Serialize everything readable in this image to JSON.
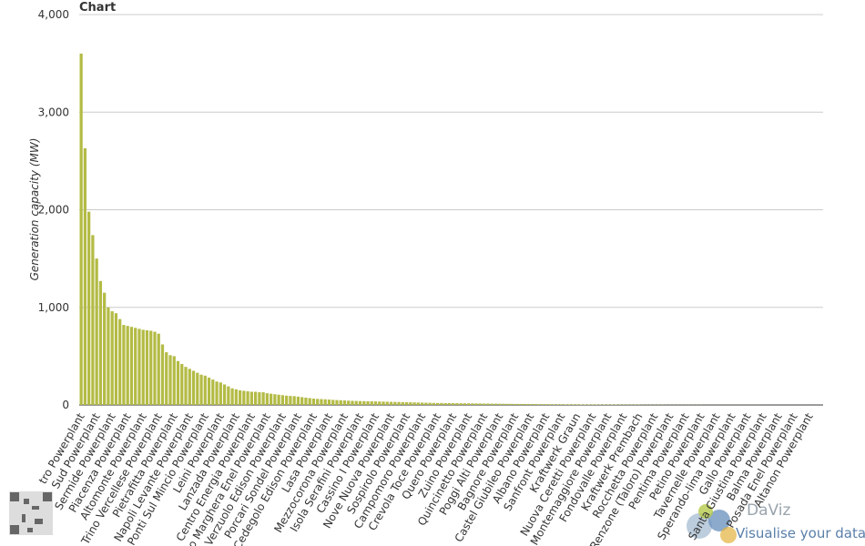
{
  "chart_data": {
    "type": "bar",
    "title": "Chart",
    "y_label": "Generation capacity (MW)",
    "color": "#b3bb45",
    "grid": true,
    "ylim": [
      0,
      4000
    ],
    "yticks": [
      0,
      {
        "value": 1000,
        "label": "1,000"
      },
      {
        "value": 2000,
        "label": "2,000"
      },
      {
        "value": 3000,
        "label": "3,000"
      },
      {
        "value": 4000,
        "label": "4,000"
      }
    ],
    "categories": [
      "tro Powerplant",
      null,
      null,
      null,
      "Sud Powerplant",
      null,
      null,
      null,
      "Sermide Powerplant",
      null,
      null,
      null,
      "Piacenza Powerplant",
      null,
      null,
      null,
      "Altomonte Powerplant",
      null,
      null,
      null,
      "Trino Vercellese Powerplant",
      null,
      null,
      null,
      "Pietrafitta Powerplant",
      null,
      null,
      null,
      "Napoli Levante Powerplant",
      null,
      null,
      null,
      "Ponti Sul Mincio Powerplant",
      null,
      null,
      null,
      "Leini Powerplant",
      null,
      null,
      null,
      "Lanzada Powerplant",
      null,
      null,
      null,
      "Centro Energia Powerplant",
      null,
      null,
      null,
      "o Marghera Enel Powerplant",
      null,
      null,
      null,
      "Verzuolo Edison Powerplant",
      null,
      null,
      null,
      "Porcari Sondel Powerplant",
      null,
      null,
      null,
      "Cedegolo Edison Powerplant",
      null,
      null,
      null,
      "Lasa Powerplant",
      null,
      null,
      null,
      "Mezzocorona Powerplant",
      null,
      null,
      null,
      "Isola Serafini Powerplant",
      null,
      null,
      null,
      "Cassino I Powerplant",
      null,
      null,
      null,
      "Nove Nuova Powerplant",
      null,
      null,
      null,
      "Sospirolo Powerplant",
      null,
      null,
      null,
      "Campomoro Powerplant",
      null,
      null,
      null,
      "Crevola Toce Powerplant",
      null,
      null,
      null,
      "Quero Powerplant",
      null,
      null,
      null,
      "Zuino Powerplant",
      null,
      null,
      null,
      "Quincinetto Powerplant",
      null,
      null,
      null,
      "Poggi Alti Powerplant",
      null,
      null,
      null,
      "Bagnore Powerplant",
      null,
      null,
      null,
      "Castel Giubileo Powerplant",
      null,
      null,
      null,
      "Albano Powerplant",
      null,
      null,
      null,
      "Sanfront Powerplant",
      null,
      null,
      null,
      "Kraftwerk Graun",
      null,
      null,
      null,
      "Nuova Ceretti Powerplant",
      null,
      null,
      null,
      "Montemaggiore Powerplant",
      null,
      null,
      null,
      "Fondovalle Powerplant",
      null,
      null,
      null,
      "Kraftwerk Prembach",
      null,
      null,
      null,
      "Rocchetta Powerplant",
      null,
      null,
      null,
      "Renzone (Taloro) Powerplant",
      null,
      null,
      null,
      "Pentima Powerplant",
      null,
      null,
      null,
      "Petino Powerplant",
      null,
      null,
      null,
      "Tavernelle Powerplant",
      null,
      null,
      null,
      "Sperando-lima Powerplant",
      null,
      null,
      null,
      "Gallo Powerplant",
      null,
      null,
      null,
      "Santa Giustina Powerplant",
      null,
      null,
      null,
      "Balma Powerplant",
      null,
      null,
      null,
      "Posada Enel Powerplant",
      null,
      null,
      null,
      "Altanon Powerplant",
      null,
      null,
      null
    ],
    "values": [
      3600,
      2630,
      1980,
      1740,
      1500,
      1270,
      1150,
      1000,
      960,
      940,
      880,
      820,
      810,
      800,
      790,
      780,
      770,
      765,
      760,
      750,
      730,
      620,
      540,
      510,
      500,
      450,
      420,
      390,
      370,
      350,
      330,
      310,
      300,
      280,
      260,
      240,
      230,
      210,
      190,
      170,
      160,
      150,
      145,
      140,
      135,
      135,
      130,
      130,
      120,
      115,
      110,
      105,
      100,
      95,
      92,
      90,
      85,
      80,
      75,
      70,
      65,
      62,
      60,
      58,
      55,
      52,
      50,
      48,
      46,
      44,
      42,
      41,
      40,
      39,
      38,
      37,
      36,
      35,
      34,
      33,
      32,
      31,
      30,
      29,
      28,
      27,
      26,
      25,
      24,
      23,
      22,
      21,
      20,
      20,
      19,
      19,
      18,
      18,
      17,
      17,
      16,
      16,
      15,
      15,
      14,
      14,
      13,
      13,
      12,
      12,
      11,
      11,
      10,
      10,
      10,
      9,
      9,
      9,
      8,
      8,
      8,
      7,
      7,
      7,
      7,
      6,
      6,
      6,
      6,
      5,
      5,
      5,
      5,
      5,
      4,
      4,
      4,
      4,
      4,
      3,
      3,
      3,
      3,
      3,
      3,
      2,
      2,
      2,
      2,
      2,
      2,
      1.5,
      1.5,
      1.5,
      1.5,
      1.5,
      1.5,
      1.5,
      1.5,
      1.5,
      1.5,
      1,
      1,
      1,
      1,
      1,
      1,
      1,
      1,
      1,
      1,
      1,
      1,
      1,
      1,
      1,
      0.5,
      0.5,
      0.5,
      0.5,
      0.5,
      0.5,
      0.5,
      0.5,
      0.5,
      0.5,
      0.5,
      0.5,
      0.5,
      0.5,
      0.5,
      0.5
    ]
  },
  "logo": {
    "name": "DaViz",
    "tagline": "Visualise your data"
  }
}
